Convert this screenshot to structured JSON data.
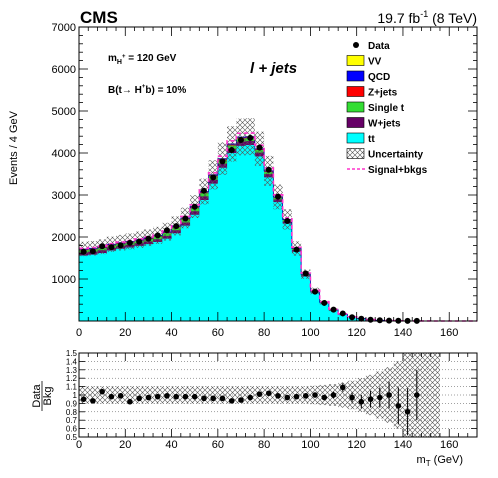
{
  "header": {
    "experiment": "CMS",
    "luminosity_pre": "19.7 fb",
    "luminosity_exp": "-1",
    "luminosity_post": " (8 TeV)"
  },
  "annotations": {
    "mass_prefix": "m",
    "mass_sub": "H",
    "mass_sup": "+",
    "mass_value": " = 120 GeV",
    "br_text": "B(t→ H",
    "br_sup": "+",
    "br_tail": "b) = 10%",
    "channel": "l + jets"
  },
  "legend": [
    {
      "label": "Data",
      "style": "marker",
      "color": "#000000"
    },
    {
      "label": "VV",
      "style": "box",
      "color": "#ffff00"
    },
    {
      "label": "QCD",
      "style": "box",
      "color": "#0000ff"
    },
    {
      "label": "Z+jets",
      "style": "box",
      "color": "#ff0000"
    },
    {
      "label": "Single t",
      "style": "box",
      "color": "#33dd33"
    },
    {
      "label": "W+jets",
      "style": "box",
      "color": "#660066"
    },
    {
      "label": "tt",
      "style": "box",
      "color": "#00ffff"
    },
    {
      "label": "Uncertainty",
      "style": "hatch",
      "color": "#555555"
    },
    {
      "label": "Signal+bkgs",
      "style": "dash",
      "color": "#ff33cc"
    }
  ],
  "colors": {
    "tt": "#00ffff",
    "wjets": "#660066",
    "singlet": "#33dd33",
    "zjets": "#ff0000",
    "qcd": "#0000ff",
    "vv": "#ffff00",
    "data": "#000000",
    "signal": "#ff33cc"
  },
  "chart_data": [
    {
      "type": "bar",
      "stacked": true,
      "xlabel": "",
      "ylabel": "Events / 4 GeV",
      "xlim": [
        0,
        172
      ],
      "ylim": [
        0,
        7000
      ],
      "x_ticks": [
        0,
        20,
        40,
        60,
        80,
        100,
        120,
        140,
        160
      ],
      "y_ticks": [
        1000,
        2000,
        3000,
        4000,
        5000,
        6000,
        7000
      ],
      "bin_width": 4,
      "bin_low_edges": [
        0,
        4,
        8,
        12,
        16,
        20,
        24,
        28,
        32,
        36,
        40,
        44,
        48,
        52,
        56,
        60,
        64,
        68,
        72,
        76,
        80,
        84,
        88,
        92,
        96,
        100,
        104,
        108,
        112,
        116,
        120,
        124,
        128,
        132,
        136,
        140,
        144,
        148,
        152,
        156,
        160,
        164,
        168
      ],
      "series": [
        {
          "name": "tt",
          "values": [
            1560,
            1580,
            1620,
            1680,
            1720,
            1750,
            1790,
            1830,
            1880,
            1960,
            2090,
            2270,
            2530,
            2880,
            3270,
            3650,
            4000,
            4170,
            4190,
            3920,
            3420,
            2830,
            2320,
            1650,
            1060,
            675,
            420,
            250,
            150,
            90,
            55,
            30,
            15,
            8,
            4,
            2,
            1,
            0,
            0,
            0,
            0,
            0,
            0
          ]
        },
        {
          "name": "W+jets",
          "values": [
            70,
            68,
            66,
            64,
            62,
            62,
            62,
            64,
            66,
            68,
            72,
            76,
            82,
            86,
            92,
            96,
            100,
            100,
            96,
            88,
            76,
            62,
            50,
            38,
            28,
            20,
            14,
            10,
            6,
            4,
            2,
            1,
            1,
            0,
            0,
            0,
            0,
            0,
            0,
            0,
            0,
            0,
            0
          ]
        },
        {
          "name": "Single t",
          "values": [
            55,
            54,
            53,
            52,
            52,
            53,
            55,
            58,
            62,
            66,
            70,
            74,
            78,
            80,
            82,
            82,
            80,
            76,
            70,
            62,
            52,
            42,
            33,
            24,
            17,
            12,
            8,
            5,
            3,
            2,
            1,
            1,
            0,
            0,
            0,
            0,
            0,
            0,
            0,
            0,
            0,
            0,
            0
          ]
        },
        {
          "name": "Z+jets",
          "values": [
            10,
            10,
            10,
            10,
            10,
            10,
            10,
            10,
            10,
            11,
            12,
            13,
            14,
            15,
            16,
            16,
            16,
            15,
            14,
            12,
            10,
            8,
            6,
            5,
            4,
            3,
            2,
            1,
            1,
            0,
            0,
            0,
            0,
            0,
            0,
            0,
            0,
            0,
            0,
            0,
            0,
            0,
            0
          ]
        },
        {
          "name": "QCD",
          "values": [
            15,
            15,
            15,
            15,
            15,
            15,
            15,
            15,
            15,
            15,
            15,
            15,
            16,
            16,
            16,
            16,
            15,
            15,
            14,
            13,
            12,
            10,
            8,
            6,
            4,
            3,
            2,
            1,
            1,
            0,
            0,
            0,
            0,
            0,
            0,
            0,
            0,
            0,
            0,
            0,
            0,
            0,
            0
          ]
        },
        {
          "name": "VV",
          "values": [
            5,
            5,
            5,
            5,
            5,
            5,
            5,
            5,
            5,
            5,
            5,
            5,
            5,
            5,
            5,
            5,
            5,
            5,
            5,
            4,
            4,
            3,
            3,
            2,
            2,
            1,
            1,
            1,
            0,
            0,
            0,
            0,
            0,
            0,
            0,
            0,
            0,
            0,
            0,
            0,
            0,
            0,
            0
          ]
        }
      ],
      "signal_plus_bkg": [
        1730,
        1748,
        1785,
        1842,
        1880,
        1912,
        1954,
        2002,
        2058,
        2147,
        2290,
        2489,
        2764,
        3125,
        3528,
        3924,
        4290,
        4470,
        4474,
        4185,
        3645,
        3005,
        2455,
        1753,
        1140,
        730,
        460,
        280,
        170,
        100,
        62,
        35,
        19,
        11,
        6,
        3,
        2,
        1,
        0,
        0,
        0,
        0,
        0
      ],
      "data_points": {
        "x": [
          2,
          6,
          10,
          14,
          18,
          22,
          26,
          30,
          34,
          38,
          42,
          46,
          50,
          54,
          58,
          62,
          66,
          70,
          74,
          78,
          82,
          86,
          90,
          94,
          98,
          102,
          106,
          110,
          114,
          118,
          122,
          126,
          130,
          134,
          138,
          142,
          146
        ],
        "y": [
          1650,
          1660,
          1780,
          1760,
          1800,
          1860,
          1890,
          1960,
          2040,
          2160,
          2260,
          2440,
          2720,
          3100,
          3420,
          3800,
          4070,
          4310,
          4360,
          4130,
          3600,
          2960,
          2380,
          1700,
          1130,
          700,
          430,
          270,
          180,
          90,
          55,
          30,
          17,
          9,
          5,
          3,
          2
        ]
      }
    },
    {
      "type": "scatter",
      "xlabel": "m_T (GeV)",
      "ylabel": "Data / Bkg",
      "xlim": [
        0,
        172
      ],
      "ylim": [
        0.5,
        1.5
      ],
      "x_ticks": [
        0,
        20,
        40,
        60,
        80,
        100,
        120,
        140,
        160
      ],
      "y_ticks": [
        0.5,
        0.6,
        0.7,
        0.8,
        0.9,
        1.0,
        1.1,
        1.2,
        1.3,
        1.4,
        1.5
      ],
      "y_tick_labels": [
        "0.5",
        "0.6",
        "0.7",
        "0.8",
        "0.9",
        "1",
        "1.1",
        "1.2",
        "1.3",
        "1.4",
        "1.5"
      ],
      "grid": true,
      "x": [
        2,
        6,
        10,
        14,
        18,
        22,
        26,
        30,
        34,
        38,
        42,
        46,
        50,
        54,
        58,
        62,
        66,
        70,
        74,
        78,
        82,
        86,
        90,
        94,
        98,
        102,
        106,
        110,
        114,
        118,
        122,
        126,
        130,
        134,
        138,
        142,
        146
      ],
      "y": [
        0.95,
        0.93,
        1.04,
        0.98,
        0.99,
        0.92,
        0.96,
        0.97,
        0.98,
        0.99,
        0.98,
        0.98,
        0.98,
        0.96,
        0.96,
        0.96,
        0.93,
        0.94,
        0.97,
        1.01,
        1.02,
        0.99,
        0.97,
        0.98,
        0.99,
        1.0,
        0.97,
        1.0,
        1.09,
        0.97,
        0.92,
        0.95,
        0.97,
        1.0,
        0.87,
        0.8,
        1.0
      ],
      "err": [
        0.02,
        0.02,
        0.02,
        0.02,
        0.02,
        0.02,
        0.02,
        0.02,
        0.02,
        0.02,
        0.02,
        0.02,
        0.02,
        0.02,
        0.02,
        0.02,
        0.02,
        0.02,
        0.02,
        0.02,
        0.02,
        0.02,
        0.02,
        0.02,
        0.02,
        0.03,
        0.03,
        0.04,
        0.05,
        0.06,
        0.08,
        0.1,
        0.12,
        0.16,
        0.22,
        0.28,
        0.3
      ],
      "uncertainty_band": {
        "x_edges": [
          0,
          4,
          8,
          12,
          16,
          20,
          24,
          28,
          32,
          36,
          40,
          44,
          48,
          52,
          56,
          60,
          64,
          68,
          72,
          76,
          80,
          84,
          88,
          92,
          96,
          100,
          104,
          108,
          112,
          116,
          120,
          124,
          128,
          132,
          136,
          140,
          144,
          148,
          152,
          156
        ],
        "half_width": [
          0.1,
          0.1,
          0.1,
          0.1,
          0.1,
          0.1,
          0.1,
          0.1,
          0.1,
          0.1,
          0.1,
          0.1,
          0.1,
          0.1,
          0.1,
          0.1,
          0.1,
          0.1,
          0.1,
          0.1,
          0.1,
          0.1,
          0.1,
          0.1,
          0.1,
          0.11,
          0.12,
          0.13,
          0.15,
          0.17,
          0.2,
          0.24,
          0.28,
          0.33,
          0.4,
          0.5,
          0.5,
          0.5,
          0.5
        ]
      }
    }
  ]
}
